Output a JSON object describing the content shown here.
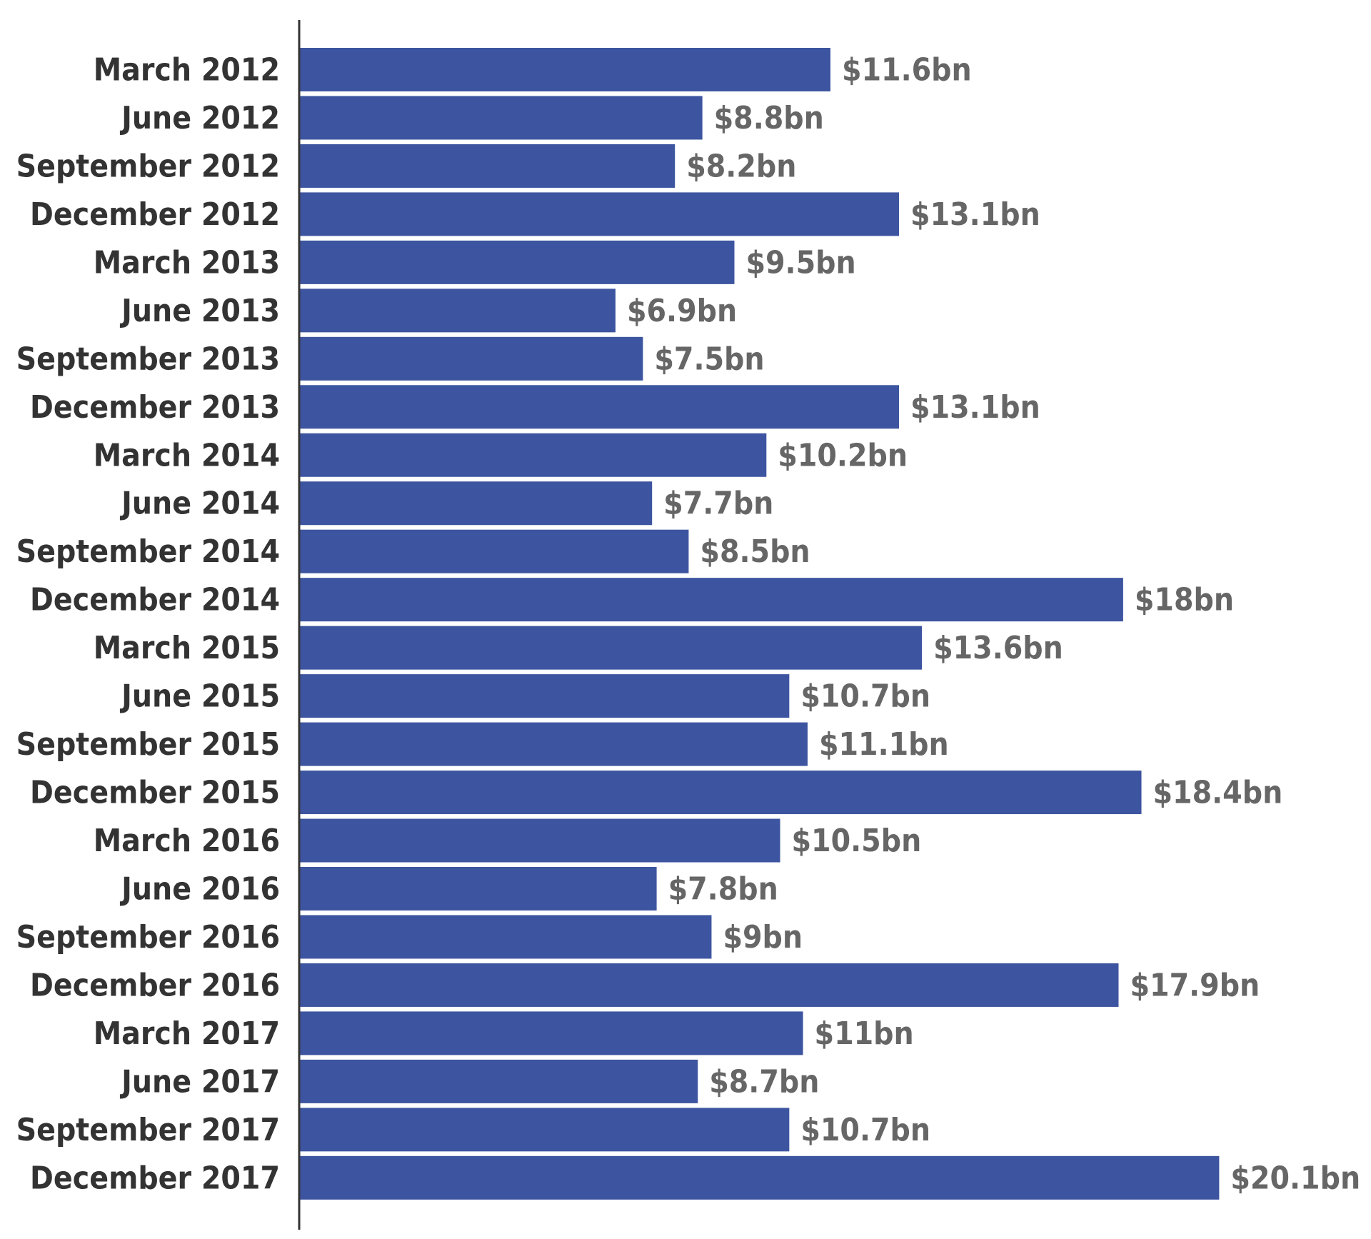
{
  "chart_data": {
    "type": "bar",
    "orientation": "horizontal",
    "title": "",
    "xlabel": "",
    "ylabel": "",
    "grid": false,
    "legend": "none",
    "bar_color": "#3d55a0",
    "categories": [
      "March 2012",
      "June 2012",
      "September 2012",
      "December 2012",
      "March 2013",
      "June 2013",
      "September 2013",
      "December 2013",
      "March 2014",
      "June 2014",
      "September 2014",
      "December 2014",
      "March 2015",
      "June 2015",
      "September 2015",
      "December 2015",
      "March 2016",
      "June 2016",
      "September 2016",
      "December 2016",
      "March 2017",
      "June 2017",
      "September 2017",
      "December 2017"
    ],
    "values": [
      11.6,
      8.8,
      8.2,
      13.1,
      9.5,
      6.9,
      7.5,
      13.1,
      10.2,
      7.7,
      8.5,
      18,
      13.6,
      10.7,
      11.1,
      18.4,
      10.5,
      7.8,
      9,
      17.9,
      11,
      8.7,
      10.7,
      20.1
    ],
    "value_labels": [
      "$11.6bn",
      "$8.8bn",
      "$8.2bn",
      "$13.1bn",
      "$9.5bn",
      "$6.9bn",
      "$7.5bn",
      "$13.1bn",
      "$10.2bn",
      "$7.7bn",
      "$8.5bn",
      "$18bn",
      "$13.6bn",
      "$10.7bn",
      "$11.1bn",
      "$18.4bn",
      "$10.5bn",
      "$7.8bn",
      "$9bn",
      "$17.9bn",
      "$11bn",
      "$8.7bn",
      "$10.7bn",
      "$20.1bn"
    ],
    "xlim": [
      0,
      20.1
    ]
  }
}
